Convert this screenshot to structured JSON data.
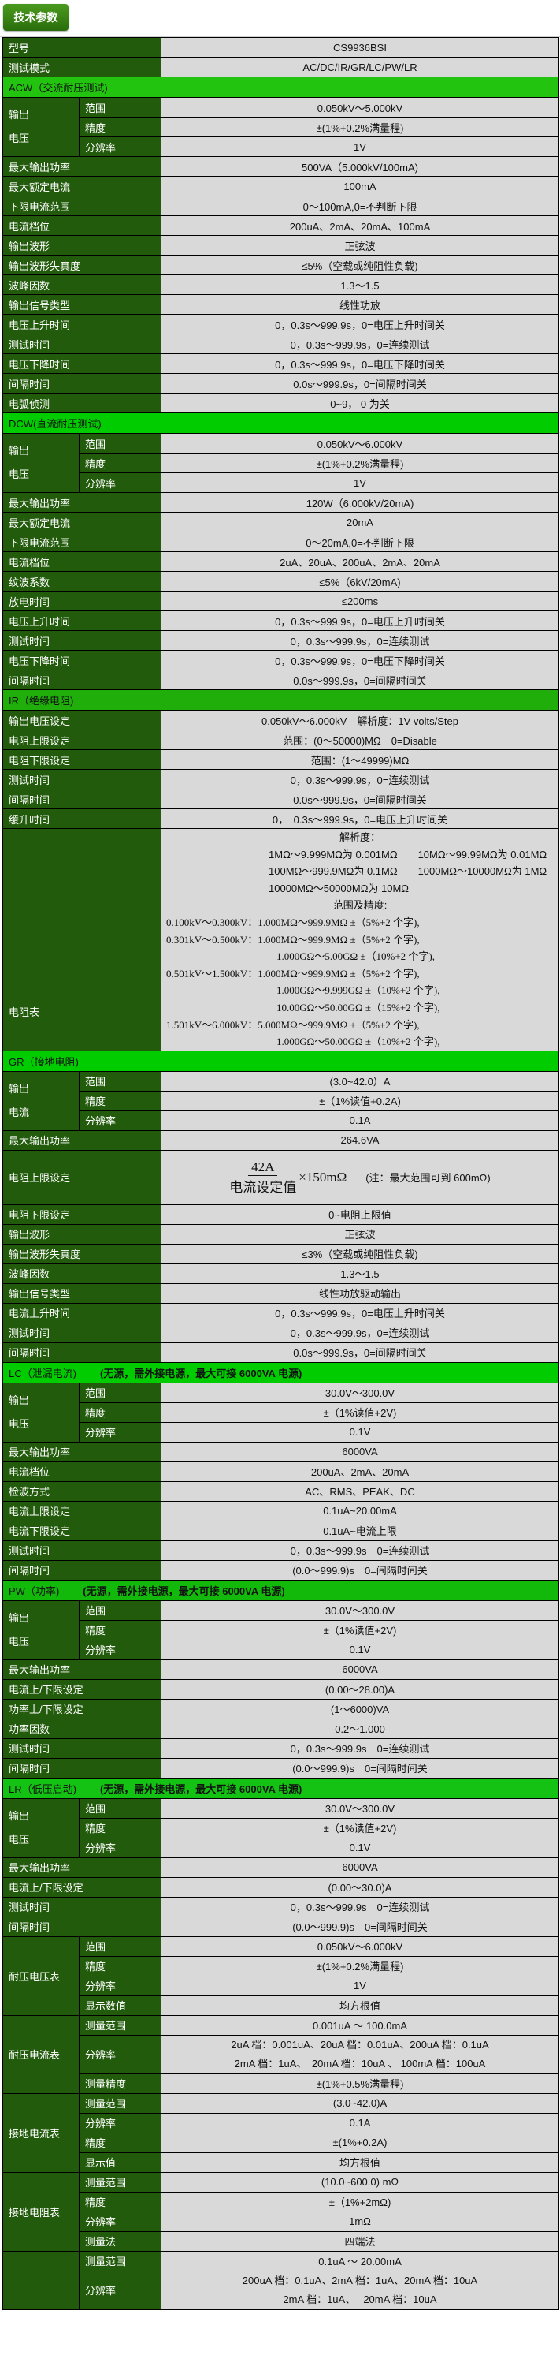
{
  "header": {
    "title": "技术参数"
  },
  "colors": {
    "label_bg": "#235b0d",
    "value_bg": "#d9d9d9",
    "section_bg": "#1fc40f"
  },
  "sections": [
    {
      "title": "",
      "note": "",
      "rows": [
        {
          "label": "型号",
          "value": "CS9936BSI"
        },
        {
          "label": "测试模式",
          "value": "AC/DC/IR/GR/LC/PW/LR"
        }
      ]
    },
    {
      "title": "ACW（交流耐压测试)",
      "note": "",
      "color": "#22c40f",
      "rows": [
        {
          "label": "输出电压",
          "sub": [
            {
              "label": "范围",
              "value": "0.050kV～5.000kV"
            },
            {
              "label": "精度",
              "value": "±(1%+0.2%满量程)"
            },
            {
              "label": "分辨率",
              "value": "1V"
            }
          ]
        },
        {
          "label": "最大输出功率",
          "value": "500VA（5.000kV/100mA)"
        },
        {
          "label": "最大额定电流",
          "value": "100mA"
        },
        {
          "label": "下限电流范围",
          "value": "0～100mA,0=不判断下限"
        },
        {
          "label": "电流档位",
          "value": "200uA、2mA、20mA、100mA"
        },
        {
          "label": "输出波形",
          "value": "正弦波"
        },
        {
          "label": "输出波形失真度",
          "value": "≤5%（空载或纯阻性负载)"
        },
        {
          "label": "波峰因数",
          "value": "1.3～1.5"
        },
        {
          "label": "输出信号类型",
          "value": "线性功放"
        },
        {
          "label": "电压上升时间",
          "value": "0，0.3s～999.9s，0=电压上升时间关"
        },
        {
          "label": "测试时间",
          "value": "0，0.3s～999.9s，0=连续测试"
        },
        {
          "label": "电压下降时间",
          "value": "0，0.3s～999.9s，0=电压下降时间关"
        },
        {
          "label": "间隔时间",
          "value": "0.0s～999.9s，0=间隔时间关"
        },
        {
          "label": "电弧侦测",
          "value": "0~9，  0 为关"
        }
      ]
    },
    {
      "title": "DCW(直流耐压测试)",
      "note": "",
      "color": "#00cc00",
      "rows": [
        {
          "label": "输出电压",
          "sub": [
            {
              "label": "范围",
              "value": "0.050kV～6.000kV"
            },
            {
              "label": "精度",
              "value": "±(1%+0.2%满量程)"
            },
            {
              "label": "分辨率",
              "value": "1V"
            }
          ]
        },
        {
          "label": "最大输出功率",
          "value": "120W（6.000kV/20mA)"
        },
        {
          "label": "最大额定电流",
          "value": "20mA"
        },
        {
          "label": "下限电流范围",
          "value": "0～20mA,0=不判断下限"
        },
        {
          "label": "电流档位",
          "value": "2uA、20uA、200uA、2mA、20mA"
        },
        {
          "label": "纹波系数",
          "value": "≤5%（6kV/20mA)"
        },
        {
          "label": "放电时间",
          "value": "≤200ms"
        },
        {
          "label": "电压上升时间",
          "value": "0，0.3s～999.9s，0=电压上升时间关"
        },
        {
          "label": "测试时间",
          "value": "0，0.3s～999.9s，0=连续测试"
        },
        {
          "label": "电压下降时间",
          "value": "0，0.3s～999.9s，0=电压下降时间关"
        },
        {
          "label": "间隔时间",
          "value": "0.0s～999.9s，0=间隔时间关"
        }
      ]
    },
    {
      "title": "IR（绝缘电阻)",
      "note": "",
      "color": "#1fae0a",
      "rows": [
        {
          "label": "输出电压设定",
          "value": "0.050kV～6.000kV　解析度：1V volts/Step"
        },
        {
          "label": "电阻上限设定",
          "value": "范围：(0～50000)MΩ　0=Disable"
        },
        {
          "label": "电阻下限设定",
          "value": "范围：(1～49999)MΩ"
        },
        {
          "label": "测试时间",
          "value": "0，0.3s～999.9s，0=连续测试"
        },
        {
          "label": "间隔时间",
          "value": "0.0s～999.9s，0=间隔时间关"
        },
        {
          "label": "缓升时间",
          "value": "0，　0.3s～999.9s，0=电压上升时间关"
        },
        {
          "label": "电阻表",
          "ir_lines": [
            "解析度：",
            "1MΩ～9.999MΩ为 0.001MΩ　　10MΩ～99.99MΩ为 0.01MΩ",
            "100MΩ～999.9MΩ为 0.1MΩ　　1000MΩ～10000MΩ为 1MΩ",
            "10000MΩ～50000MΩ为 10MΩ",
            "范围及精度:",
            "0.100kV～0.300kV：1.000MΩ～999.9MΩ ±（5%+2 个字),",
            "0.301kV～0.500kV：1.000MΩ～999.9MΩ ±（5%+2 个字),",
            "1.000GΩ～5.00GΩ ±（10%+2 个字),",
            "0.501kV～1.500kV：1.000MΩ～999.9MΩ ±（5%+2 个字),",
            "1.000GΩ～9.999GΩ ±（10%+2 个字),",
            "10.00GΩ～50.00GΩ ±（15%+2 个字),",
            "1.501kV～6.000kV：5.000MΩ～999.9MΩ ±（5%+2 个字),",
            "1.000GΩ～50.00GΩ ±（10%+2 个字),"
          ]
        }
      ]
    },
    {
      "title": "GR（接地电阻)",
      "note": "",
      "color": "#00cc00",
      "rows": [
        {
          "label": "输出电流",
          "sub": [
            {
              "label": "范围",
              "value": "(3.0~42.0）A"
            },
            {
              "label": "精度",
              "value": "±（1%读值+0.2A)"
            },
            {
              "label": "分辨率",
              "value": "0.1A"
            }
          ]
        },
        {
          "label": "最大输出功率",
          "value": "264.6VA"
        },
        {
          "label": "电阻上限设定",
          "formula": {
            "numerator": "42A",
            "denominator": "电流设定值",
            "factor": "×150mΩ",
            "note": "(注：最大范围可到 600mΩ)"
          }
        },
        {
          "label": "电阻下限设定",
          "value": "0~电阻上限值"
        },
        {
          "label": "输出波形",
          "value": "正弦波"
        },
        {
          "label": "输出波形失真度",
          "value": "≤3%（空载或纯阻性负载)"
        },
        {
          "label": "波峰因数",
          "value": "1.3～1.5"
        },
        {
          "label": "输出信号类型",
          "value": "线性功放驱动输出"
        },
        {
          "label": "电流上升时间",
          "value": "0，0.3s～999.9s，0=电压上升时间关"
        },
        {
          "label": "测试时间",
          "value": "0，0.3s～999.9s，0=连续测试"
        },
        {
          "label": "间隔时间",
          "value": "0.0s～999.9s，0=间隔时间关"
        }
      ]
    },
    {
      "title": "LC（泄漏电流)",
      "note": "(无源，需外接电源，最大可接 6000VA 电源)",
      "color": "#00cc00",
      "rows": [
        {
          "label": "输出电压",
          "sub": [
            {
              "label": "范围",
              "value": "30.0V～300.0V"
            },
            {
              "label": "精度",
              "value": "±（1%读值+2V)"
            },
            {
              "label": "分辨率",
              "value": "0.1V"
            }
          ]
        },
        {
          "label": "最大输出功率",
          "value": "6000VA"
        },
        {
          "label": "电流档位",
          "value": "200uA、2mA、20mA"
        },
        {
          "label": "检波方式",
          "value": "AC、RMS、PEAK、DC"
        },
        {
          "label": "电流上限设定",
          "value": "0.1uA~20.00mA"
        },
        {
          "label": "电流下限设定",
          "value": "0.1uA~电流上限"
        },
        {
          "label": "测试时间",
          "value": "0，0.3s～999.9s　0=连续测试"
        },
        {
          "label": "间隔时间",
          "value": "(0.0～999.9)s　0=间隔时间关"
        }
      ]
    },
    {
      "title": "PW（功率)",
      "note": "(无源，需外接电源，最大可接 6000VA 电源)",
      "color": "#12b80a",
      "rows": [
        {
          "label": "输出电压",
          "sub": [
            {
              "label": "范围",
              "value": "30.0V～300.0V"
            },
            {
              "label": "精度",
              "value": "±（1%读值+2V)"
            },
            {
              "label": "分辨率",
              "value": "0.1V"
            }
          ]
        },
        {
          "label": "最大输出功率",
          "value": "6000VA"
        },
        {
          "label": "电流上/下限设定",
          "value": "(0.00～28.00)A"
        },
        {
          "label": "功率上/下限设定",
          "value": "(1～6000)VA"
        },
        {
          "label": "功率因数",
          "value": "0.2～1.000"
        },
        {
          "label": "测试时间",
          "value": "0，0.3s～999.9s　0=连续测试"
        },
        {
          "label": "间隔时间",
          "value": "(0.0～999.9)s　0=间隔时间关"
        }
      ]
    },
    {
      "title": "LR（低压启动)",
      "note": "(无源，需外接电源，最大可接 6000VA 电源)",
      "color": "#14c214",
      "rows": [
        {
          "label": "输出电压",
          "sub": [
            {
              "label": "范围",
              "value": "30.0V～300.0V"
            },
            {
              "label": "精度",
              "value": "±（1%读值+2V)"
            },
            {
              "label": "分辨率",
              "value": "0.1V"
            }
          ]
        },
        {
          "label": "最大输出功率",
          "value": "6000VA"
        },
        {
          "label": "电流上/下限设定",
          "value": "(0.00～30.0)A"
        },
        {
          "label": "测试时间",
          "value": "0，0.3s～999.9s　0=连续测试"
        },
        {
          "label": "间隔时间",
          "value": "(0.0～999.9)s　0=间隔时间关"
        },
        {
          "label": "耐压电压表",
          "sub": [
            {
              "label": "范围",
              "value": "0.050kV～6.000kV"
            },
            {
              "label": "精度",
              "value": "±(1%+0.2%满量程)"
            },
            {
              "label": "分辨率",
              "value": "1V"
            },
            {
              "label": "显示数值",
              "value": "均方根值"
            }
          ]
        },
        {
          "label": "耐压电流表",
          "sub": [
            {
              "label": "测量范围",
              "value": "0.001uA ～ 100.0mA"
            },
            {
              "label": "分辨率",
              "lines": [
                "2uA 档：0.001uA、20uA 档：0.01uA、200uA 档：0.1uA",
                "2mA 档：1uA、　20mA 档：10uA 、 100mA 档：100uA"
              ]
            },
            {
              "label": "测量精度",
              "value": "±(1%+0.5%满量程)"
            }
          ]
        },
        {
          "label": "接地电流表",
          "sub": [
            {
              "label": "测量范围",
              "value": "(3.0~42.0)A"
            },
            {
              "label": "分辨率",
              "value": "0.1A"
            },
            {
              "label": "精度",
              "value": "±(1%+0.2A)"
            },
            {
              "label": "显示值",
              "value": "均方根值"
            }
          ]
        },
        {
          "label": "接地电阻表",
          "sub": [
            {
              "label": "测量范围",
              "value": "(10.0~600.0) mΩ"
            },
            {
              "label": "精度",
              "value": "±（1%+2mΩ)"
            },
            {
              "label": "分辨率",
              "value": "1mΩ"
            },
            {
              "label": "测量法",
              "value": "四端法"
            }
          ]
        },
        {
          "label": "",
          "sub": [
            {
              "label": "测量范围",
              "value": "0.1uA ～ 20.00mA"
            },
            {
              "label": "分辨率",
              "lines": [
                "200uA 档：0.1uA、2mA 档：1uA、20mA 档：10uA",
                "2mA 档：1uA、　 20mA 档：10uA"
              ]
            }
          ]
        }
      ]
    }
  ]
}
